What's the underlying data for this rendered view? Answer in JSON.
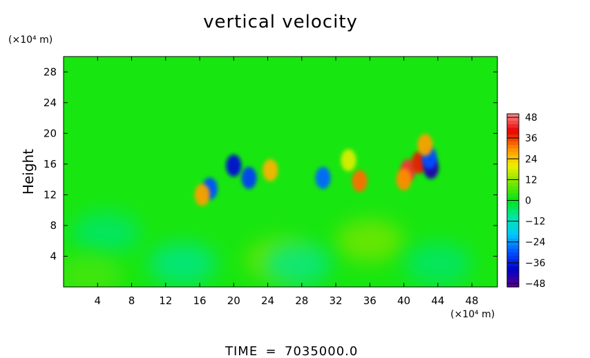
{
  "chart_data": {
    "type": "heatmap",
    "title": "vertical velocity",
    "xlabel": "",
    "ylabel": "Height",
    "x_unit": "(×10⁴ m)",
    "y_unit": "(×10⁴ m)",
    "xlim": [
      0,
      51
    ],
    "ylim": [
      0,
      30
    ],
    "x_ticks": [
      4,
      8,
      12,
      16,
      20,
      24,
      28,
      32,
      36,
      40,
      44,
      48
    ],
    "y_ticks": [
      4,
      8,
      12,
      16,
      20,
      24,
      28
    ],
    "colorbar": {
      "min": -50,
      "max": 50,
      "ticks": [
        48,
        36,
        24,
        12,
        0,
        -12,
        -24,
        -36,
        -48
      ],
      "tick_labels": [
        "48",
        "36",
        "24",
        "12",
        "0",
        "−12",
        "−24",
        "−36",
        "−48"
      ]
    },
    "background_value": 2,
    "features": [
      {
        "x": 40.5,
        "y": 15.2,
        "v": 44
      },
      {
        "x": 41.8,
        "y": 16.2,
        "v": 38
      },
      {
        "x": 40.0,
        "y": 14.0,
        "v": 30
      },
      {
        "x": 43.2,
        "y": 15.5,
        "v": -44
      },
      {
        "x": 43.0,
        "y": 16.8,
        "v": -30
      },
      {
        "x": 20.0,
        "y": 15.8,
        "v": -38
      },
      {
        "x": 21.8,
        "y": 14.2,
        "v": -32
      },
      {
        "x": 30.5,
        "y": 14.2,
        "v": -28
      },
      {
        "x": 17.2,
        "y": 12.8,
        "v": -30
      },
      {
        "x": 16.3,
        "y": 12.0,
        "v": 28
      },
      {
        "x": 24.3,
        "y": 15.2,
        "v": 26
      },
      {
        "x": 34.8,
        "y": 13.8,
        "v": 32
      },
      {
        "x": 42.5,
        "y": 18.5,
        "v": 28
      },
      {
        "x": 33.5,
        "y": 16.5,
        "v": 18
      },
      {
        "x": 25.5,
        "y": 3.5,
        "v": 10
      },
      {
        "x": 36.0,
        "y": 6.0,
        "v": 10
      },
      {
        "x": 14.0,
        "y": 3.0,
        "v": -8
      },
      {
        "x": 27.5,
        "y": 3.0,
        "v": -8
      },
      {
        "x": 44.0,
        "y": 3.0,
        "v": -6
      },
      {
        "x": 5.0,
        "y": 7.0,
        "v": -6
      },
      {
        "x": 3.0,
        "y": 1.5,
        "v": 6
      }
    ],
    "time_label": "TIME",
    "time_value": "7035000.0"
  }
}
